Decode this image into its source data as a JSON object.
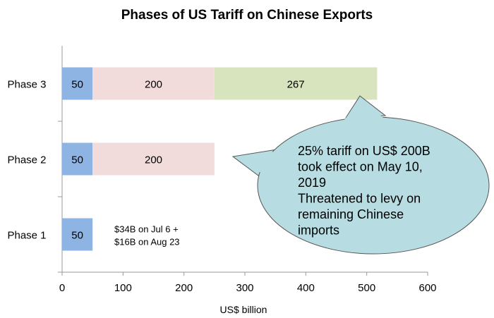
{
  "chart_data": {
    "type": "bar",
    "orientation": "horizontal",
    "stacked": true,
    "title": "Phases of US Tariff on Chinese Exports",
    "xlabel": "US$ billion",
    "ylabel": "",
    "xlim": [
      0,
      600
    ],
    "xticks": [
      "0",
      "100",
      "200",
      "300",
      "400",
      "500",
      "600"
    ],
    "categories": [
      "Phase 1",
      "Phase 2",
      "Phase 3"
    ],
    "series": [
      {
        "values": [
          50,
          50,
          50
        ],
        "labels": [
          "50",
          "50",
          "50"
        ],
        "color": "#8eb4e3"
      },
      {
        "values": [
          0,
          200,
          200
        ],
        "labels": [
          "",
          "200",
          "200"
        ],
        "color": "#f2dcdb"
      },
      {
        "values": [
          0,
          0,
          267
        ],
        "labels": [
          "",
          "",
          "267"
        ],
        "color": "#d7e4bd"
      }
    ],
    "grid": false,
    "legend": "none",
    "annotations": {
      "phase1_note": [
        "$34B on Jul 6 +",
        "$16B on Aug 23"
      ],
      "callout": [
        "25% tariff on US$ 200B",
        "took effect on May 10,",
        "2019",
        "Threatened to levy on",
        "remaining Chinese",
        "imports"
      ],
      "callout_color": "#b7dde3"
    }
  }
}
